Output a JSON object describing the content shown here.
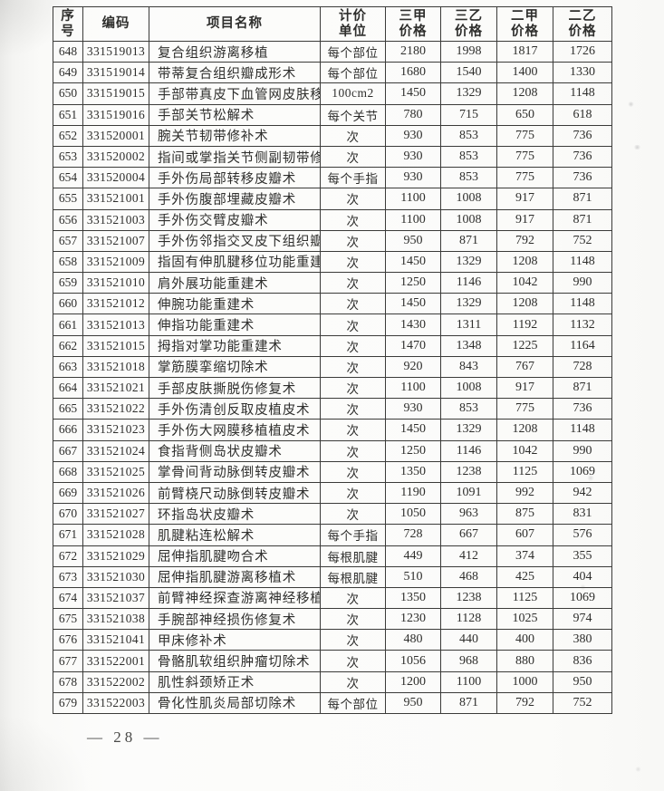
{
  "document": {
    "footer_page_number": "— 28 —"
  },
  "table": {
    "columns": [
      {
        "line1": "序",
        "line2": "号"
      },
      {
        "line1": "编码",
        "line2": ""
      },
      {
        "line1": "项目名称",
        "line2": ""
      },
      {
        "line1": "计价",
        "line2": "单位"
      },
      {
        "line1": "三甲",
        "line2": "价格"
      },
      {
        "line1": "三乙",
        "line2": "价格"
      },
      {
        "line1": "二甲",
        "line2": "价格"
      },
      {
        "line1": "二乙",
        "line2": "价格"
      }
    ],
    "rows": [
      {
        "no": "648",
        "code": "331519013",
        "name": "复合组织游离移植",
        "unit": "每个部位",
        "p1": "2180",
        "p2": "1998",
        "p3": "1817",
        "p4": "1726"
      },
      {
        "no": "649",
        "code": "331519014",
        "name": "带蒂复合组织瓣成形术",
        "unit": "每个部位",
        "p1": "1680",
        "p2": "1540",
        "p3": "1400",
        "p4": "1330"
      },
      {
        "no": "650",
        "code": "331519015",
        "name": "手部带真皮下血管网皮肤移植术",
        "unit": "100cm2",
        "p1": "1450",
        "p2": "1329",
        "p3": "1208",
        "p4": "1148"
      },
      {
        "no": "651",
        "code": "331519016",
        "name": "手部关节松解术",
        "unit": "每个关节",
        "p1": "780",
        "p2": "715",
        "p3": "650",
        "p4": "618"
      },
      {
        "no": "652",
        "code": "331520001",
        "name": "腕关节韧带修补术",
        "unit": "次",
        "p1": "930",
        "p2": "853",
        "p3": "775",
        "p4": "736"
      },
      {
        "no": "653",
        "code": "331520002",
        "name": "指间或掌指关节侧副韧带修补术",
        "unit": "次",
        "p1": "930",
        "p2": "853",
        "p3": "775",
        "p4": "736"
      },
      {
        "no": "654",
        "code": "331520004",
        "name": "手外伤局部转移皮瓣术",
        "unit": "每个手指",
        "p1": "930",
        "p2": "853",
        "p3": "775",
        "p4": "736"
      },
      {
        "no": "655",
        "code": "331521001",
        "name": "手外伤腹部埋藏皮瓣术",
        "unit": "次",
        "p1": "1100",
        "p2": "1008",
        "p3": "917",
        "p4": "871"
      },
      {
        "no": "656",
        "code": "331521003",
        "name": "手外伤交臂皮瓣术",
        "unit": "次",
        "p1": "1100",
        "p2": "1008",
        "p3": "917",
        "p4": "871"
      },
      {
        "no": "657",
        "code": "331521007",
        "name": "手外伤邻指交叉皮下组织瓣术",
        "unit": "次",
        "p1": "950",
        "p2": "871",
        "p3": "792",
        "p4": "752"
      },
      {
        "no": "658",
        "code": "331521009",
        "name": "指固有伸肌腱移位功能重建术",
        "unit": "次",
        "p1": "1450",
        "p2": "1329",
        "p3": "1208",
        "p4": "1148"
      },
      {
        "no": "659",
        "code": "331521010",
        "name": "肩外展功能重建术",
        "unit": "次",
        "p1": "1250",
        "p2": "1146",
        "p3": "1042",
        "p4": "990"
      },
      {
        "no": "660",
        "code": "331521012",
        "name": "伸腕功能重建术",
        "unit": "次",
        "p1": "1450",
        "p2": "1329",
        "p3": "1208",
        "p4": "1148"
      },
      {
        "no": "661",
        "code": "331521013",
        "name": "伸指功能重建术",
        "unit": "次",
        "p1": "1430",
        "p2": "1311",
        "p3": "1192",
        "p4": "1132"
      },
      {
        "no": "662",
        "code": "331521015",
        "name": "拇指对掌功能重建术",
        "unit": "次",
        "p1": "1470",
        "p2": "1348",
        "p3": "1225",
        "p4": "1164"
      },
      {
        "no": "663",
        "code": "331521018",
        "name": "掌筋膜挛缩切除术",
        "unit": "次",
        "p1": "920",
        "p2": "843",
        "p3": "767",
        "p4": "728"
      },
      {
        "no": "664",
        "code": "331521021",
        "name": "手部皮肤撕脱伤修复术",
        "unit": "次",
        "p1": "1100",
        "p2": "1008",
        "p3": "917",
        "p4": "871"
      },
      {
        "no": "665",
        "code": "331521022",
        "name": "手外伤清创反取皮植皮术",
        "unit": "次",
        "p1": "930",
        "p2": "853",
        "p3": "775",
        "p4": "736"
      },
      {
        "no": "666",
        "code": "331521023",
        "name": "手外伤大网膜移植植皮术",
        "unit": "次",
        "p1": "1450",
        "p2": "1329",
        "p3": "1208",
        "p4": "1148"
      },
      {
        "no": "667",
        "code": "331521024",
        "name": "食指背侧岛状皮瓣术",
        "unit": "次",
        "p1": "1250",
        "p2": "1146",
        "p3": "1042",
        "p4": "990"
      },
      {
        "no": "668",
        "code": "331521025",
        "name": "掌骨间背动脉倒转皮瓣术",
        "unit": "次",
        "p1": "1350",
        "p2": "1238",
        "p3": "1125",
        "p4": "1069"
      },
      {
        "no": "669",
        "code": "331521026",
        "name": "前臂桡尺动脉倒转皮瓣术",
        "unit": "次",
        "p1": "1190",
        "p2": "1091",
        "p3": "992",
        "p4": "942"
      },
      {
        "no": "670",
        "code": "331521027",
        "name": "环指岛状皮瓣术",
        "unit": "次",
        "p1": "1050",
        "p2": "963",
        "p3": "875",
        "p4": "831"
      },
      {
        "no": "671",
        "code": "331521028",
        "name": "肌腱粘连松解术",
        "unit": "每个手指",
        "p1": "728",
        "p2": "667",
        "p3": "607",
        "p4": "576"
      },
      {
        "no": "672",
        "code": "331521029",
        "name": "屈伸指肌腱吻合术",
        "unit": "每根肌腱",
        "p1": "449",
        "p2": "412",
        "p3": "374",
        "p4": "355"
      },
      {
        "no": "673",
        "code": "331521030",
        "name": "屈伸指肌腱游离移植术",
        "unit": "每根肌腱",
        "p1": "510",
        "p2": "468",
        "p3": "425",
        "p4": "404"
      },
      {
        "no": "674",
        "code": "331521037",
        "name": "前臂神经探查游离神经移植术",
        "unit": "次",
        "p1": "1350",
        "p2": "1238",
        "p3": "1125",
        "p4": "1069"
      },
      {
        "no": "675",
        "code": "331521038",
        "name": "手腕部神经损伤修复术",
        "unit": "次",
        "p1": "1230",
        "p2": "1128",
        "p3": "1025",
        "p4": "974"
      },
      {
        "no": "676",
        "code": "331521041",
        "name": "甲床修补术",
        "unit": "次",
        "p1": "480",
        "p2": "440",
        "p3": "400",
        "p4": "380"
      },
      {
        "no": "677",
        "code": "331522001",
        "name": "骨骼肌软组织肿瘤切除术",
        "unit": "次",
        "p1": "1056",
        "p2": "968",
        "p3": "880",
        "p4": "836"
      },
      {
        "no": "678",
        "code": "331522002",
        "name": "肌性斜颈矫正术",
        "unit": "次",
        "p1": "1200",
        "p2": "1100",
        "p3": "1000",
        "p4": "950"
      },
      {
        "no": "679",
        "code": "331522003",
        "name": "骨化性肌炎局部切除术",
        "unit": "每个部位",
        "p1": "950",
        "p2": "871",
        "p3": "792",
        "p4": "752"
      }
    ]
  }
}
